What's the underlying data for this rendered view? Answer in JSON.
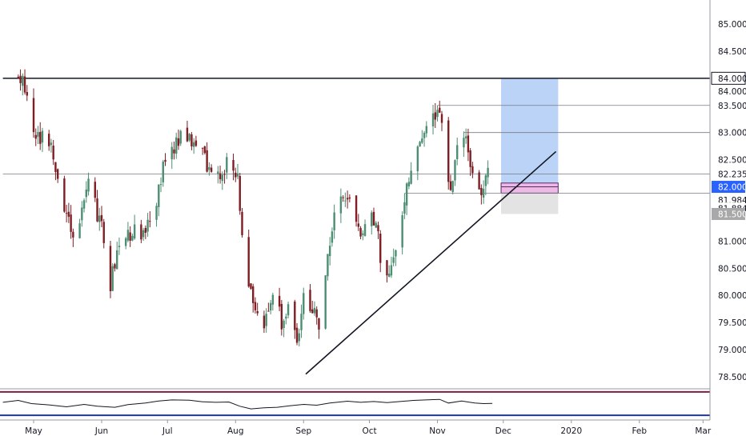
{
  "chart_data": {
    "type": "candlestick",
    "title": "",
    "xlabel": "",
    "ylabel": "",
    "y_axis_position": "right",
    "ylim": [
      78.2,
      85.4
    ],
    "y_ticks": [
      "78.500",
      "79.000",
      "79.500",
      "80.000",
      "80.500",
      "81.000",
      "81.500",
      "82.000",
      "82.500",
      "83.000",
      "83.500",
      "84.000",
      "84.500",
      "85.000"
    ],
    "x_labels": [
      {
        "label": "May",
        "day": 7
      },
      {
        "label": "Jun",
        "day": 38
      },
      {
        "label": "Jul",
        "day": 68
      },
      {
        "label": "Aug",
        "day": 99
      },
      {
        "label": "Sep",
        "day": 130
      },
      {
        "label": "Oct",
        "day": 160
      },
      {
        "label": "Nov",
        "day": 191
      },
      {
        "label": "Dec",
        "day": 221
      },
      {
        "label": "2020",
        "day": 252
      },
      {
        "label": "Feb",
        "day": 283
      },
      {
        "label": "Mar",
        "day": 312
      }
    ],
    "x_range_days": [
      -7,
      326
    ],
    "colors": {
      "up": "#4c8e72",
      "down": "#7f1d23",
      "grid_line": "#787b86",
      "horizontal_level": "#131722"
    },
    "candle_anchors": [
      {
        "day": 0,
        "price": 84.0
      },
      {
        "day": 4,
        "price": 83.8
      },
      {
        "day": 8,
        "price": 82.8
      },
      {
        "day": 12,
        "price": 83.0
      },
      {
        "day": 16,
        "price": 82.6
      },
      {
        "day": 20,
        "price": 81.8
      },
      {
        "day": 26,
        "price": 81.1
      },
      {
        "day": 32,
        "price": 82.0
      },
      {
        "day": 38,
        "price": 81.3
      },
      {
        "day": 42,
        "price": 80.2
      },
      {
        "day": 46,
        "price": 80.9
      },
      {
        "day": 52,
        "price": 81.2
      },
      {
        "day": 56,
        "price": 81.0
      },
      {
        "day": 62,
        "price": 81.6
      },
      {
        "day": 66,
        "price": 82.3
      },
      {
        "day": 72,
        "price": 82.8
      },
      {
        "day": 76,
        "price": 83.0
      },
      {
        "day": 80,
        "price": 82.8
      },
      {
        "day": 84,
        "price": 82.6
      },
      {
        "day": 88,
        "price": 82.3
      },
      {
        "day": 92,
        "price": 82.2
      },
      {
        "day": 96,
        "price": 82.5
      },
      {
        "day": 100,
        "price": 82.2
      },
      {
        "day": 102,
        "price": 81.2
      },
      {
        "day": 104,
        "price": 80.3
      },
      {
        "day": 108,
        "price": 79.9
      },
      {
        "day": 112,
        "price": 79.4
      },
      {
        "day": 116,
        "price": 80.1
      },
      {
        "day": 120,
        "price": 79.5
      },
      {
        "day": 124,
        "price": 79.9
      },
      {
        "day": 127,
        "price": 79.0
      },
      {
        "day": 130,
        "price": 80.0
      },
      {
        "day": 134,
        "price": 79.7
      },
      {
        "day": 138,
        "price": 79.4
      },
      {
        "day": 140,
        "price": 80.4
      },
      {
        "day": 144,
        "price": 81.5
      },
      {
        "day": 148,
        "price": 81.9
      },
      {
        "day": 152,
        "price": 81.6
      },
      {
        "day": 156,
        "price": 81.2
      },
      {
        "day": 160,
        "price": 81.6
      },
      {
        "day": 164,
        "price": 81.2
      },
      {
        "day": 166,
        "price": 80.3
      },
      {
        "day": 170,
        "price": 80.5
      },
      {
        "day": 174,
        "price": 81.3
      },
      {
        "day": 177,
        "price": 82.1
      },
      {
        "day": 182,
        "price": 82.6
      },
      {
        "day": 186,
        "price": 83.1
      },
      {
        "day": 190,
        "price": 83.4
      },
      {
        "day": 192,
        "price": 83.5
      },
      {
        "day": 194,
        "price": 82.6
      },
      {
        "day": 197,
        "price": 82.0
      },
      {
        "day": 201,
        "price": 82.9
      },
      {
        "day": 204,
        "price": 82.8
      },
      {
        "day": 207,
        "price": 82.2
      },
      {
        "day": 210,
        "price": 81.9
      },
      {
        "day": 213,
        "price": 82.2
      },
      {
        "day": 216,
        "price": 82.235
      }
    ],
    "levels": [
      {
        "price": 84.0,
        "label": "84.000",
        "day_start": -7,
        "style": "heavy"
      },
      {
        "price": 83.5,
        "label": "83.500",
        "day_start": 191,
        "style": "thin"
      },
      {
        "price": 83.0,
        "label": "83.000",
        "day_start": 203,
        "style": "thin"
      },
      {
        "price": 82.235,
        "label": "82.235",
        "day_start": -7,
        "style": "thin"
      },
      {
        "price": 81.884,
        "label": "81.884",
        "day_start": 176,
        "style": "thin"
      }
    ],
    "trendline": {
      "from": {
        "day": 131,
        "price": 78.55
      },
      "to": {
        "day": 245,
        "price": 82.65
      }
    },
    "position": {
      "day_start": 220,
      "day_end": 246,
      "entry": 82.0,
      "target": 84.0,
      "stop": 81.5,
      "entry_range": [
        81.884,
        82.07
      ]
    },
    "price_badges": [
      {
        "label": "84.000",
        "price": 84.0,
        "bg": "#ffffff",
        "fg": "#131722",
        "border": "#131722"
      },
      {
        "label": "84.000",
        "price": 83.76,
        "bg": "#ffffff",
        "fg": "#131722",
        "border": ""
      },
      {
        "label": "83.500",
        "price": 83.5,
        "bg": "#ffffff",
        "fg": "#131722",
        "border": ""
      },
      {
        "label": "83.000",
        "price": 83.0,
        "bg": "#ffffff",
        "fg": "#131722",
        "border": ""
      },
      {
        "label": "82.235",
        "price": 82.235,
        "bg": "#ffffff",
        "fg": "#131722",
        "border": ""
      },
      {
        "label": "82.000",
        "price": 82.0,
        "bg": "#2962ff",
        "fg": "#ffffff",
        "border": ""
      },
      {
        "label": "81.984",
        "price": 81.76,
        "bg": "#ffffff",
        "fg": "#131722",
        "border": ""
      },
      {
        "label": "81.884",
        "price": 81.6,
        "bg": "#ffffff",
        "fg": "#131722",
        "border": ""
      },
      {
        "label": "81.500",
        "price": 81.5,
        "bg": "#a8a8a8",
        "fg": "#ffffff",
        "border": ""
      }
    ],
    "oscillator": {
      "upper_level": 70,
      "lower_level": 30,
      "upper_color": "#7f1d3f",
      "lower_color": "#1e3a8a",
      "line_color": "#131722",
      "values": [
        {
          "day": -7,
          "value": 55
        },
        {
          "day": 0,
          "value": 62
        },
        {
          "day": 6,
          "value": 50
        },
        {
          "day": 14,
          "value": 45
        },
        {
          "day": 22,
          "value": 38
        },
        {
          "day": 30,
          "value": 47
        },
        {
          "day": 36,
          "value": 40
        },
        {
          "day": 44,
          "value": 36
        },
        {
          "day": 50,
          "value": 46
        },
        {
          "day": 58,
          "value": 52
        },
        {
          "day": 64,
          "value": 60
        },
        {
          "day": 70,
          "value": 64
        },
        {
          "day": 78,
          "value": 63
        },
        {
          "day": 84,
          "value": 57
        },
        {
          "day": 90,
          "value": 55
        },
        {
          "day": 96,
          "value": 56
        },
        {
          "day": 101,
          "value": 40
        },
        {
          "day": 106,
          "value": 30
        },
        {
          "day": 112,
          "value": 34
        },
        {
          "day": 118,
          "value": 36
        },
        {
          "day": 124,
          "value": 42
        },
        {
          "day": 130,
          "value": 47
        },
        {
          "day": 136,
          "value": 44
        },
        {
          "day": 142,
          "value": 52
        },
        {
          "day": 150,
          "value": 59
        },
        {
          "day": 156,
          "value": 55
        },
        {
          "day": 162,
          "value": 58
        },
        {
          "day": 168,
          "value": 54
        },
        {
          "day": 174,
          "value": 58
        },
        {
          "day": 180,
          "value": 62
        },
        {
          "day": 188,
          "value": 65
        },
        {
          "day": 192,
          "value": 66
        },
        {
          "day": 196,
          "value": 52
        },
        {
          "day": 202,
          "value": 60
        },
        {
          "day": 208,
          "value": 52
        },
        {
          "day": 212,
          "value": 50
        },
        {
          "day": 216,
          "value": 51
        }
      ]
    }
  }
}
